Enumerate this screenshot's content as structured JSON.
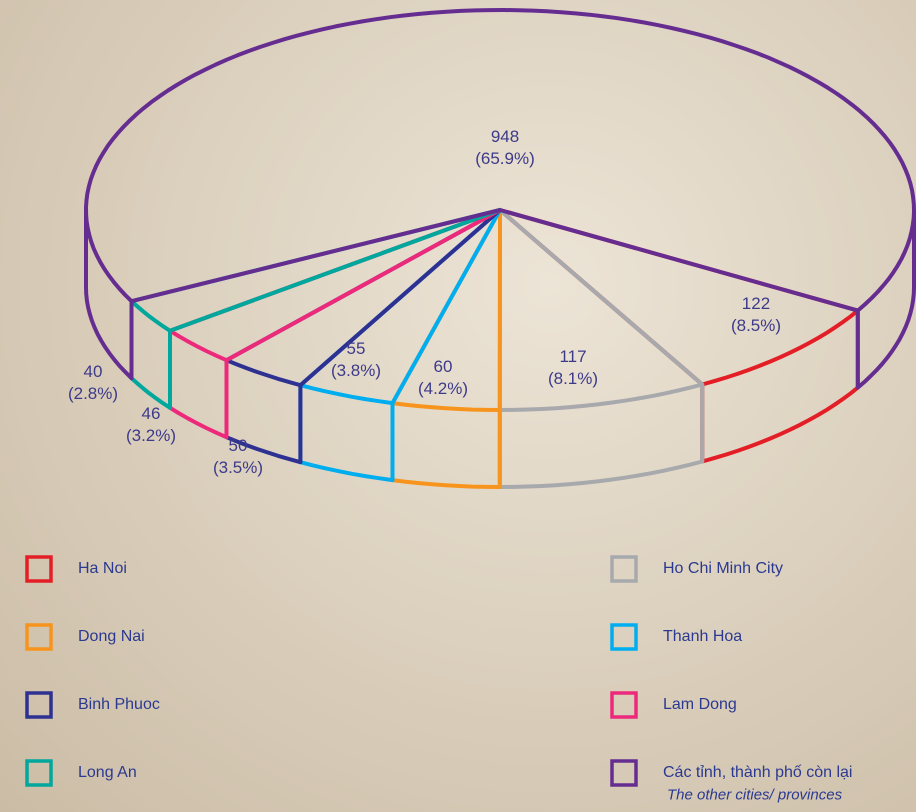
{
  "chart_data": {
    "type": "pie",
    "categories": [
      "Ha Noi",
      "Ho Chi Minh City",
      "Dong Nai",
      "Thanh Hoa",
      "Binh Phuoc",
      "Lam Dong",
      "Long An",
      "Các tỉnh, thành phố còn lại"
    ],
    "other_label_en": "The other cities/ provinces",
    "values": [
      122,
      117,
      60,
      55,
      50,
      46,
      40,
      948
    ],
    "value_labels": [
      "122\n(8.5%)",
      "117\n(8.1%)",
      "60\n(4.2%)",
      "55\n(3.8%)",
      "50\n(3.5%)",
      "46\n(3.2%)",
      "40\n(2.8%)",
      "948\n(65.9%)"
    ],
    "colors": [
      "#e41e26",
      "#a7a9ac",
      "#f7941d",
      "#00aeef",
      "#2e3192",
      "#ec297b",
      "#00a79d",
      "#662d91"
    ]
  }
}
